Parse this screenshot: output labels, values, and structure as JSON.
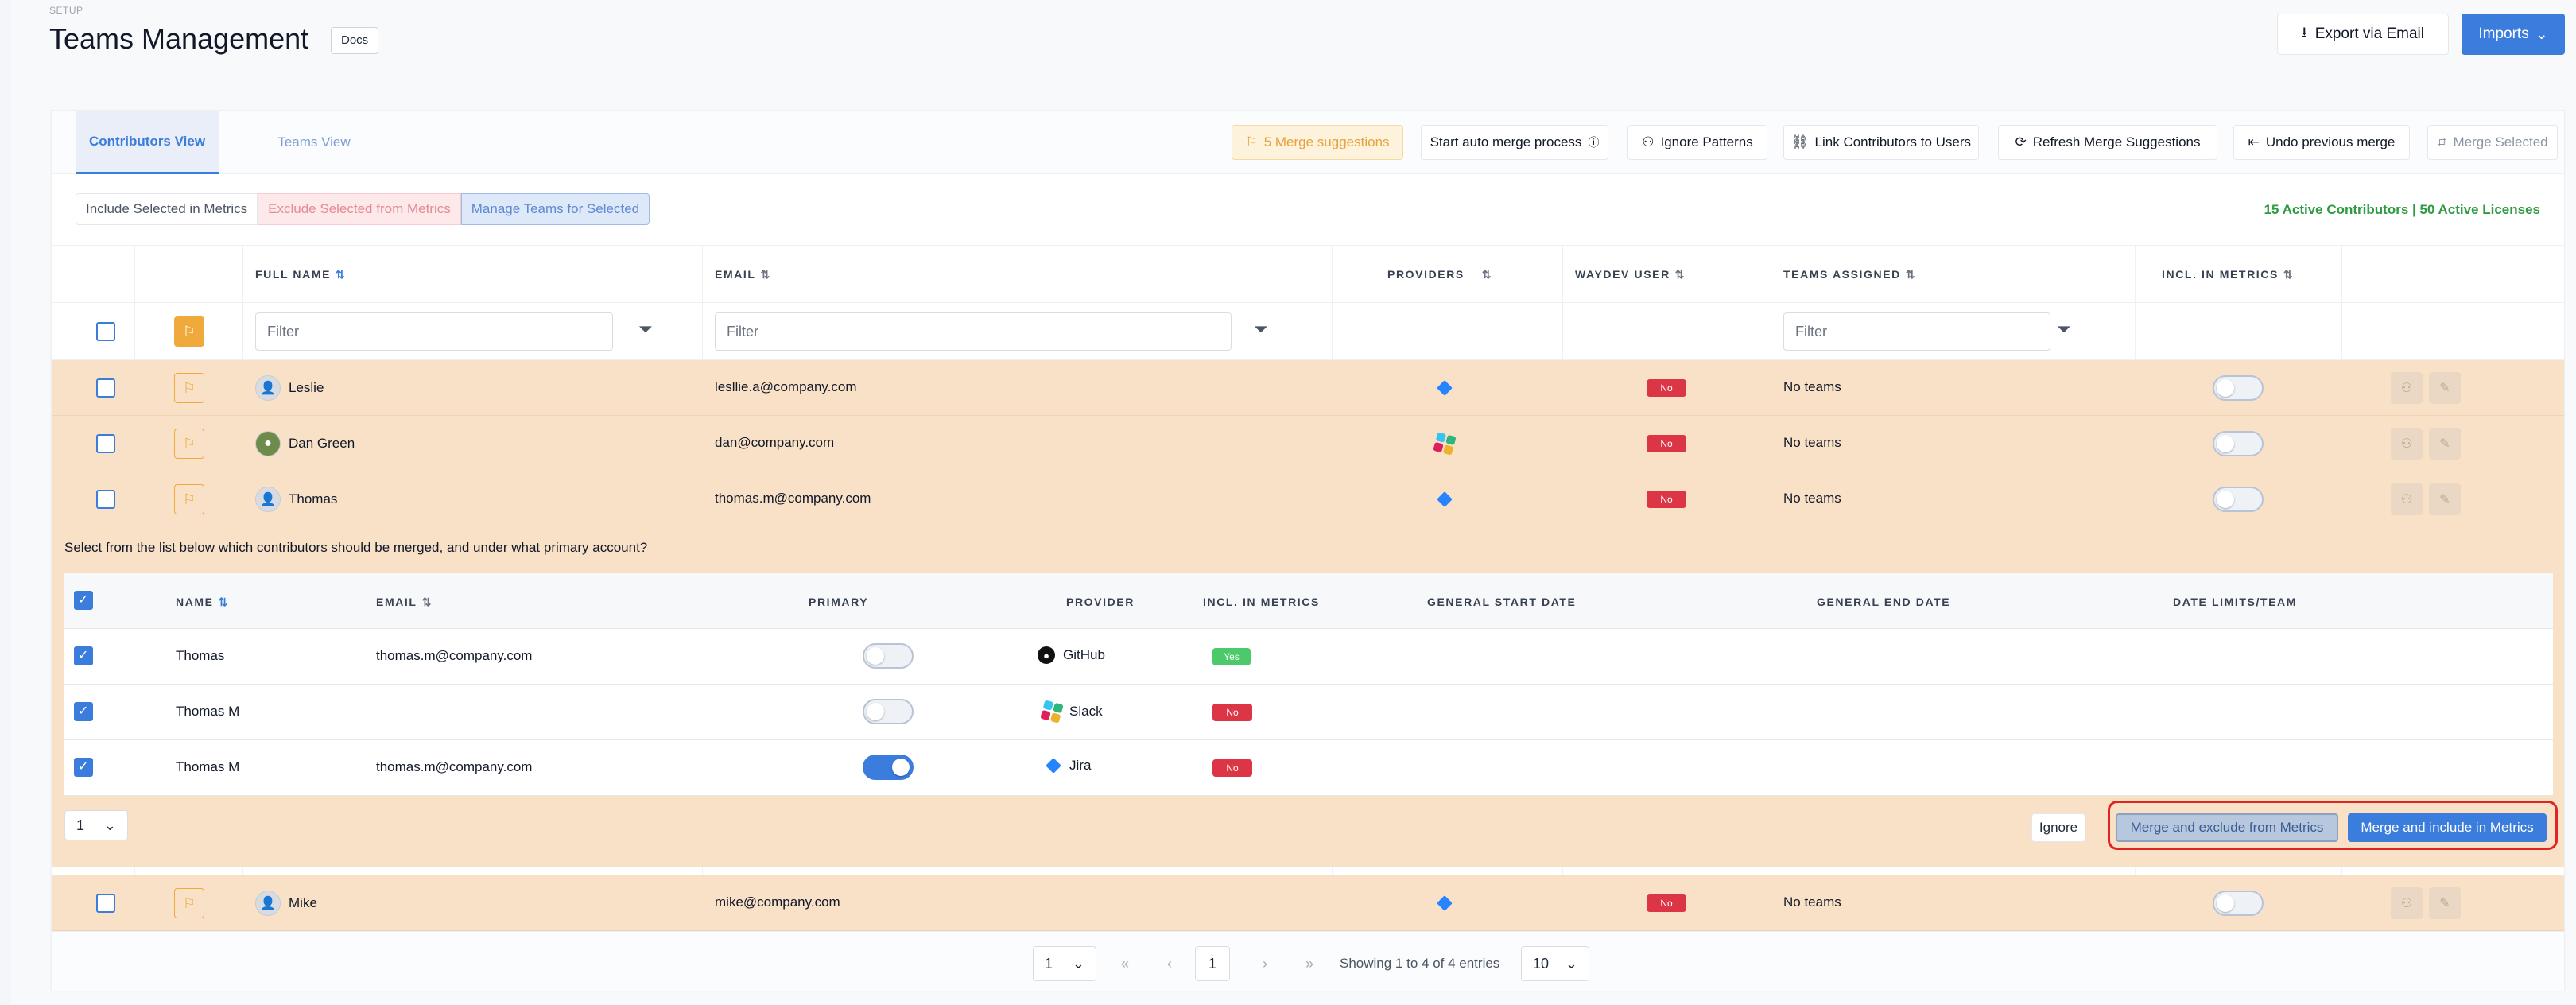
{
  "header": {
    "section": "SETUP",
    "title": "Teams Management",
    "docs": "Docs",
    "export": "Export via Email",
    "imports": "Imports"
  },
  "tabs": [
    "Contributors View",
    "Teams View"
  ],
  "toolbar": {
    "merge_suggestions": "5 Merge suggestions",
    "auto_merge": "Start auto merge process",
    "ignore_patterns": "Ignore Patterns",
    "link_contributors": "Link Contributors to Users",
    "refresh": "Refresh Merge Suggestions",
    "undo": "Undo previous merge",
    "merge_selected": "Merge Selected"
  },
  "selection": {
    "include": "Include Selected in Metrics",
    "exclude": "Exclude Selected from Metrics",
    "manage": "Manage Teams for Selected",
    "summary": "15 Active Contributors | 50 Active Licenses"
  },
  "columns": {
    "full_name": "FULL NAME",
    "email": "EMAIL",
    "providers": "PROVIDERS",
    "waydev_user": "WAYDEV USER",
    "teams_assigned": "TEAMS ASSIGNED",
    "incl_metrics": "INCL. IN METRICS"
  },
  "filters": {
    "placeholder": "Filter"
  },
  "rows": [
    {
      "name": "Leslie",
      "email": "lesllie.a@company.com",
      "provider": "jira",
      "waydev": "No",
      "teams": "No teams"
    },
    {
      "name": "Dan Green",
      "email": "dan@company.com",
      "provider": "slack",
      "waydev": "No",
      "teams": "No teams"
    },
    {
      "name": "Thomas",
      "email": "thomas.m@company.com",
      "provider": "jira",
      "waydev": "No",
      "teams": "No teams"
    },
    {
      "name": "Mike",
      "email": "mike@company.com",
      "provider": "jira",
      "waydev": "No",
      "teams": "No teams"
    }
  ],
  "merge": {
    "message": "Select from the list below which contributors should be merged, and under what primary account?",
    "columns": {
      "name": "NAME",
      "email": "EMAIL",
      "primary": "PRIMARY",
      "provider": "PROVIDER",
      "incl": "INCL. IN METRICS",
      "start": "GENERAL START DATE",
      "end": "GENERAL END DATE",
      "limits": "DATE LIMITS/TEAM"
    },
    "rows": [
      {
        "name": "Thomas",
        "email": "thomas.m@company.com",
        "provider": "GitHub",
        "incl": "Yes",
        "primary": false
      },
      {
        "name": "Thomas M",
        "email": "",
        "provider": "Slack",
        "incl": "No",
        "primary": false
      },
      {
        "name": "Thomas M",
        "email": "thomas.m@company.com",
        "provider": "Jira",
        "incl": "No",
        "primary": true
      }
    ],
    "page": "1",
    "ignore": "Ignore",
    "merge_exclude": "Merge and exclude from Metrics",
    "merge_include": "Merge and include in Metrics"
  },
  "pagination": {
    "page_select": "1",
    "current": "1",
    "info": "Showing 1 to 4 of 4 entries",
    "per_page": "10"
  }
}
